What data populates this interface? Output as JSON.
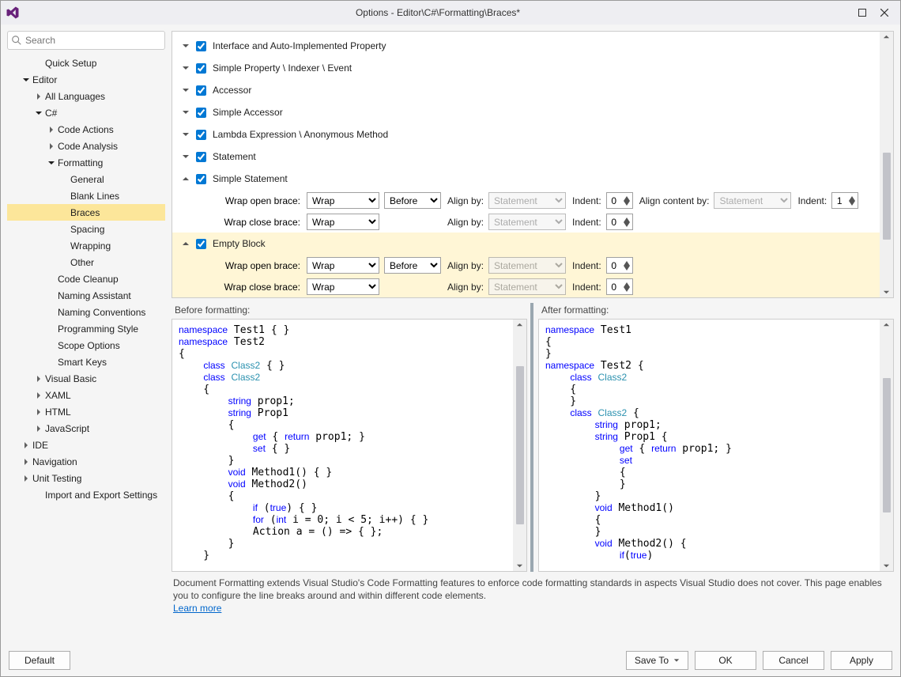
{
  "colors": {
    "highlight": "#fce69a",
    "panel_hl": "#fff6d6",
    "border": "#cccccc",
    "scroll_thumb": "#c2c3c9",
    "link": "#0066cc",
    "kw": "#0000ff",
    "type": "#2b91af"
  },
  "window": {
    "title": "Options - Editor\\C#\\Formatting\\Braces*"
  },
  "search": {
    "placeholder": "Search"
  },
  "tree": [
    {
      "label": "Quick Setup",
      "indent": 1,
      "caret": "none"
    },
    {
      "label": "Editor",
      "indent": 0,
      "caret": "down"
    },
    {
      "label": "All Languages",
      "indent": 1,
      "caret": "right"
    },
    {
      "label": "C#",
      "indent": 1,
      "caret": "down"
    },
    {
      "label": "Code Actions",
      "indent": 2,
      "caret": "right"
    },
    {
      "label": "Code Analysis",
      "indent": 2,
      "caret": "right"
    },
    {
      "label": "Formatting",
      "indent": 2,
      "caret": "down"
    },
    {
      "label": "General",
      "indent": 3,
      "caret": "none"
    },
    {
      "label": "Blank Lines",
      "indent": 3,
      "caret": "none"
    },
    {
      "label": "Braces",
      "indent": 3,
      "caret": "none",
      "selected": true
    },
    {
      "label": "Spacing",
      "indent": 3,
      "caret": "none"
    },
    {
      "label": "Wrapping",
      "indent": 3,
      "caret": "none"
    },
    {
      "label": "Other",
      "indent": 3,
      "caret": "none"
    },
    {
      "label": "Code Cleanup",
      "indent": 2,
      "caret": "none"
    },
    {
      "label": "Naming Assistant",
      "indent": 2,
      "caret": "none"
    },
    {
      "label": "Naming Conventions",
      "indent": 2,
      "caret": "none"
    },
    {
      "label": "Programming Style",
      "indent": 2,
      "caret": "none"
    },
    {
      "label": "Scope Options",
      "indent": 2,
      "caret": "none"
    },
    {
      "label": "Smart Keys",
      "indent": 2,
      "caret": "none"
    },
    {
      "label": "Visual Basic",
      "indent": 1,
      "caret": "right"
    },
    {
      "label": "XAML",
      "indent": 1,
      "caret": "right"
    },
    {
      "label": "HTML",
      "indent": 1,
      "caret": "right"
    },
    {
      "label": "JavaScript",
      "indent": 1,
      "caret": "right"
    },
    {
      "label": "IDE",
      "indent": 0,
      "caret": "right"
    },
    {
      "label": "Navigation",
      "indent": 0,
      "caret": "right"
    },
    {
      "label": "Unit Testing",
      "indent": 0,
      "caret": "right"
    },
    {
      "label": "Import and Export Settings",
      "indent": 1,
      "caret": "none"
    }
  ],
  "options": {
    "rows": [
      {
        "label": "Interface and Auto-Implemented Property",
        "chev": "down",
        "checked": true
      },
      {
        "label": "Simple Property \\ Indexer \\ Event",
        "chev": "down",
        "checked": true
      },
      {
        "label": "Accessor",
        "chev": "down",
        "checked": true
      },
      {
        "label": "Simple Accessor",
        "chev": "down",
        "checked": true
      },
      {
        "label": "Lambda Expression \\ Anonymous Method",
        "chev": "down",
        "checked": true
      },
      {
        "label": "Statement",
        "chev": "down",
        "checked": true
      }
    ],
    "simple_statement": {
      "label": "Simple Statement",
      "chev": "up",
      "checked": true,
      "open": {
        "label": "Wrap open brace:",
        "wrap": "Wrap",
        "pos": "Before",
        "align_lbl": "Align by:",
        "align": "Statement",
        "indent_lbl": "Indent:",
        "indent": "0",
        "content_lbl": "Align content by:",
        "content": "Statement",
        "cindent_lbl": "Indent:",
        "cindent": "1"
      },
      "close": {
        "label": "Wrap close brace:",
        "wrap": "Wrap",
        "align_lbl": "Align by:",
        "align": "Statement",
        "indent_lbl": "Indent:",
        "indent": "0"
      }
    },
    "empty_block": {
      "label": "Empty Block",
      "chev": "up",
      "checked": true,
      "open": {
        "label": "Wrap open brace:",
        "wrap": "Wrap",
        "pos": "Before",
        "align_lbl": "Align by:",
        "align": "Statement",
        "indent_lbl": "Indent:",
        "indent": "0"
      },
      "close": {
        "label": "Wrap close brace:",
        "wrap": "Wrap",
        "align_lbl": "Align by:",
        "align": "Statement",
        "indent_lbl": "Indent:",
        "indent": "0"
      }
    },
    "select_options": {
      "wrap": [
        "Wrap"
      ],
      "pos": [
        "Before"
      ],
      "align": [
        "Statement"
      ]
    }
  },
  "preview": {
    "before_label": "Before formatting:",
    "after_label": "After formatting:",
    "before": [
      {
        "t": "kw",
        "v": "namespace"
      },
      {
        "t": "p",
        "v": " Test1 { }\n"
      },
      {
        "t": "kw",
        "v": "namespace"
      },
      {
        "t": "p",
        "v": " Test2\n{\n    "
      },
      {
        "t": "kw",
        "v": "class"
      },
      {
        "t": "p",
        "v": " "
      },
      {
        "t": "type",
        "v": "Class2"
      },
      {
        "t": "p",
        "v": " { }\n    "
      },
      {
        "t": "kw",
        "v": "class"
      },
      {
        "t": "p",
        "v": " "
      },
      {
        "t": "type",
        "v": "Class2"
      },
      {
        "t": "p",
        "v": "\n    {\n        "
      },
      {
        "t": "kw",
        "v": "string"
      },
      {
        "t": "p",
        "v": " prop1;\n        "
      },
      {
        "t": "kw",
        "v": "string"
      },
      {
        "t": "p",
        "v": " Prop1\n        {\n            "
      },
      {
        "t": "kw",
        "v": "get"
      },
      {
        "t": "p",
        "v": " { "
      },
      {
        "t": "kw",
        "v": "return"
      },
      {
        "t": "p",
        "v": " prop1; }\n            "
      },
      {
        "t": "kw",
        "v": "set"
      },
      {
        "t": "p",
        "v": " { }\n        }\n        "
      },
      {
        "t": "kw",
        "v": "void"
      },
      {
        "t": "p",
        "v": " Method1() { }\n        "
      },
      {
        "t": "kw",
        "v": "void"
      },
      {
        "t": "p",
        "v": " Method2()\n        {\n            "
      },
      {
        "t": "kw",
        "v": "if"
      },
      {
        "t": "p",
        "v": " ("
      },
      {
        "t": "kw",
        "v": "true"
      },
      {
        "t": "p",
        "v": ") { }\n            "
      },
      {
        "t": "kw",
        "v": "for"
      },
      {
        "t": "p",
        "v": " ("
      },
      {
        "t": "kw",
        "v": "int"
      },
      {
        "t": "p",
        "v": " i = 0; i < 5; i++) { }\n            Action a = () => { };\n        }\n    }"
      }
    ],
    "after": [
      {
        "t": "kw",
        "v": "namespace"
      },
      {
        "t": "p",
        "v": " Test1\n{\n}\n"
      },
      {
        "t": "kw",
        "v": "namespace"
      },
      {
        "t": "p",
        "v": " Test2 {\n    "
      },
      {
        "t": "kw",
        "v": "class"
      },
      {
        "t": "p",
        "v": " "
      },
      {
        "t": "type",
        "v": "Class2"
      },
      {
        "t": "p",
        "v": "\n    {\n    }\n    "
      },
      {
        "t": "kw",
        "v": "class"
      },
      {
        "t": "p",
        "v": " "
      },
      {
        "t": "type",
        "v": "Class2"
      },
      {
        "t": "p",
        "v": " {\n        "
      },
      {
        "t": "kw",
        "v": "string"
      },
      {
        "t": "p",
        "v": " prop1;\n        "
      },
      {
        "t": "kw",
        "v": "string"
      },
      {
        "t": "p",
        "v": " Prop1 {\n            "
      },
      {
        "t": "kw",
        "v": "get"
      },
      {
        "t": "p",
        "v": " { "
      },
      {
        "t": "kw",
        "v": "return"
      },
      {
        "t": "p",
        "v": " prop1; }\n            "
      },
      {
        "t": "kw",
        "v": "set"
      },
      {
        "t": "p",
        "v": "\n            {\n            }\n        }\n        "
      },
      {
        "t": "kw",
        "v": "void"
      },
      {
        "t": "p",
        "v": " Method1()\n        {\n        }\n        "
      },
      {
        "t": "kw",
        "v": "void"
      },
      {
        "t": "p",
        "v": " Method2() {\n            "
      },
      {
        "t": "kw",
        "v": "if"
      },
      {
        "t": "p",
        "v": "("
      },
      {
        "t": "kw",
        "v": "true"
      },
      {
        "t": "p",
        "v": ")"
      }
    ]
  },
  "description": {
    "text": "Document Formatting extends Visual Studio's Code Formatting features to enforce code formatting standards in aspects Visual Studio does not cover. This page enables you to configure the line breaks around and within different code elements.",
    "link": "Learn more"
  },
  "footer": {
    "default": "Default",
    "saveto": "Save To",
    "ok": "OK",
    "cancel": "Cancel",
    "apply": "Apply"
  }
}
